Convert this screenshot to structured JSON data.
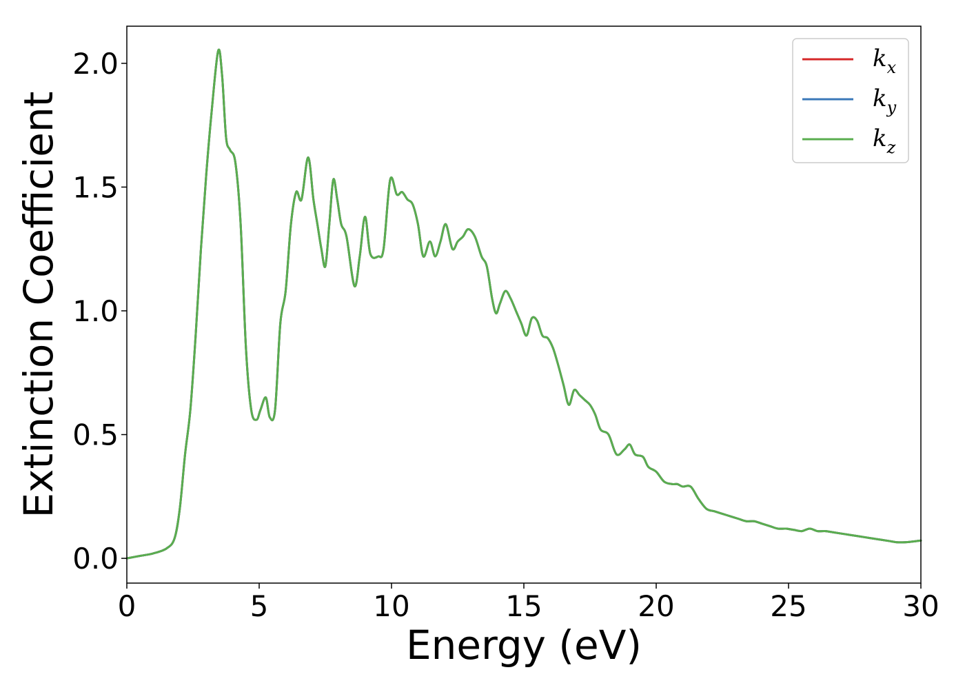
{
  "chart_data": {
    "type": "line",
    "title": "",
    "xlabel": "Energy (eV)",
    "ylabel": "Extinction Coefficient",
    "xlim": [
      0,
      30
    ],
    "ylim": [
      -0.1,
      2.15
    ],
    "x_ticks": [
      0,
      5,
      10,
      15,
      20,
      25,
      30
    ],
    "x_tick_labels": [
      "0",
      "5",
      "10",
      "15",
      "20",
      "25",
      "30"
    ],
    "y_ticks": [
      0.0,
      0.5,
      1.0,
      1.5,
      2.0
    ],
    "y_tick_labels": [
      "0.0",
      "0.5",
      "1.0",
      "1.5",
      "2.0"
    ],
    "grid": false,
    "legend_position": "top-right",
    "legend": [
      {
        "base": "k",
        "sub": "x",
        "color": "#d62728"
      },
      {
        "base": "k",
        "sub": "y",
        "color": "#3a78b8"
      },
      {
        "base": "k",
        "sub": "z",
        "color": "#5aad4f"
      }
    ],
    "x": [
      0,
      0.5,
      1.0,
      1.5,
      1.8,
      2.0,
      2.2,
      2.4,
      2.6,
      2.8,
      3.0,
      3.2,
      3.45,
      3.6,
      3.75,
      3.9,
      4.1,
      4.3,
      4.5,
      4.7,
      4.9,
      5.05,
      5.25,
      5.4,
      5.6,
      5.8,
      6.0,
      6.2,
      6.4,
      6.6,
      6.85,
      7.05,
      7.2,
      7.35,
      7.5,
      7.65,
      7.8,
      7.95,
      8.1,
      8.3,
      8.6,
      8.8,
      9.0,
      9.2,
      9.5,
      9.7,
      9.95,
      10.2,
      10.4,
      10.6,
      10.8,
      11.0,
      11.2,
      11.45,
      11.65,
      11.85,
      12.05,
      12.3,
      12.5,
      12.7,
      12.9,
      13.15,
      13.4,
      13.6,
      13.8,
      13.95,
      14.1,
      14.3,
      14.5,
      14.7,
      14.9,
      15.1,
      15.3,
      15.5,
      15.7,
      15.9,
      16.1,
      16.3,
      16.5,
      16.7,
      16.9,
      17.1,
      17.3,
      17.5,
      17.7,
      17.9,
      18.2,
      18.5,
      18.8,
      19.0,
      19.2,
      19.5,
      19.7,
      20.0,
      20.3,
      20.6,
      20.8,
      21.0,
      21.3,
      21.6,
      21.9,
      22.2,
      22.5,
      22.8,
      23.1,
      23.4,
      23.7,
      24.0,
      24.3,
      24.6,
      24.9,
      25.2,
      25.5,
      25.8,
      26.1,
      26.4,
      26.7,
      27.0,
      27.3,
      27.6,
      27.9,
      28.2,
      28.5,
      28.8,
      29.1,
      29.4,
      29.7,
      30.0
    ],
    "series": [
      {
        "name": "k_x",
        "values": [
          0.0,
          0.01,
          0.02,
          0.04,
          0.08,
          0.2,
          0.42,
          0.6,
          0.9,
          1.25,
          1.55,
          1.8,
          2.05,
          1.95,
          1.7,
          1.65,
          1.6,
          1.35,
          0.85,
          0.6,
          0.56,
          0.6,
          0.65,
          0.57,
          0.6,
          0.95,
          1.08,
          1.35,
          1.48,
          1.45,
          1.62,
          1.45,
          1.35,
          1.25,
          1.18,
          1.35,
          1.53,
          1.45,
          1.35,
          1.3,
          1.1,
          1.22,
          1.38,
          1.23,
          1.22,
          1.25,
          1.53,
          1.47,
          1.48,
          1.45,
          1.43,
          1.35,
          1.22,
          1.28,
          1.22,
          1.28,
          1.35,
          1.25,
          1.28,
          1.3,
          1.33,
          1.3,
          1.22,
          1.18,
          1.05,
          0.99,
          1.03,
          1.08,
          1.05,
          1.0,
          0.95,
          0.9,
          0.97,
          0.96,
          0.9,
          0.89,
          0.85,
          0.78,
          0.7,
          0.62,
          0.68,
          0.66,
          0.64,
          0.62,
          0.58,
          0.52,
          0.5,
          0.42,
          0.44,
          0.46,
          0.42,
          0.41,
          0.37,
          0.35,
          0.31,
          0.3,
          0.3,
          0.29,
          0.29,
          0.24,
          0.2,
          0.19,
          0.18,
          0.17,
          0.16,
          0.15,
          0.15,
          0.14,
          0.13,
          0.12,
          0.12,
          0.115,
          0.11,
          0.12,
          0.11,
          0.11,
          0.105,
          0.1,
          0.095,
          0.09,
          0.085,
          0.08,
          0.075,
          0.07,
          0.065,
          0.065,
          0.068,
          0.072
        ]
      },
      {
        "name": "k_y",
        "values": [
          0.0,
          0.01,
          0.02,
          0.04,
          0.08,
          0.2,
          0.42,
          0.6,
          0.9,
          1.25,
          1.55,
          1.8,
          2.05,
          1.95,
          1.7,
          1.65,
          1.6,
          1.35,
          0.85,
          0.6,
          0.56,
          0.6,
          0.65,
          0.57,
          0.6,
          0.95,
          1.08,
          1.35,
          1.48,
          1.45,
          1.62,
          1.45,
          1.35,
          1.25,
          1.18,
          1.35,
          1.53,
          1.45,
          1.35,
          1.3,
          1.1,
          1.22,
          1.38,
          1.23,
          1.22,
          1.25,
          1.53,
          1.47,
          1.48,
          1.45,
          1.43,
          1.35,
          1.22,
          1.28,
          1.22,
          1.28,
          1.35,
          1.25,
          1.28,
          1.3,
          1.33,
          1.3,
          1.22,
          1.18,
          1.05,
          0.99,
          1.03,
          1.08,
          1.05,
          1.0,
          0.95,
          0.9,
          0.97,
          0.96,
          0.9,
          0.89,
          0.85,
          0.78,
          0.7,
          0.62,
          0.68,
          0.66,
          0.64,
          0.62,
          0.58,
          0.52,
          0.5,
          0.42,
          0.44,
          0.46,
          0.42,
          0.41,
          0.37,
          0.35,
          0.31,
          0.3,
          0.3,
          0.29,
          0.29,
          0.24,
          0.2,
          0.19,
          0.18,
          0.17,
          0.16,
          0.15,
          0.15,
          0.14,
          0.13,
          0.12,
          0.12,
          0.115,
          0.11,
          0.12,
          0.11,
          0.11,
          0.105,
          0.1,
          0.095,
          0.09,
          0.085,
          0.08,
          0.075,
          0.07,
          0.065,
          0.065,
          0.068,
          0.072
        ]
      },
      {
        "name": "k_z",
        "values": [
          0.0,
          0.01,
          0.02,
          0.04,
          0.08,
          0.2,
          0.42,
          0.6,
          0.9,
          1.25,
          1.55,
          1.8,
          2.05,
          1.95,
          1.7,
          1.65,
          1.6,
          1.35,
          0.85,
          0.6,
          0.56,
          0.6,
          0.65,
          0.57,
          0.6,
          0.95,
          1.08,
          1.35,
          1.48,
          1.45,
          1.62,
          1.45,
          1.35,
          1.25,
          1.18,
          1.35,
          1.53,
          1.45,
          1.35,
          1.3,
          1.1,
          1.22,
          1.38,
          1.23,
          1.22,
          1.25,
          1.53,
          1.47,
          1.48,
          1.45,
          1.43,
          1.35,
          1.22,
          1.28,
          1.22,
          1.28,
          1.35,
          1.25,
          1.28,
          1.3,
          1.33,
          1.3,
          1.22,
          1.18,
          1.05,
          0.99,
          1.03,
          1.08,
          1.05,
          1.0,
          0.95,
          0.9,
          0.97,
          0.96,
          0.9,
          0.89,
          0.85,
          0.78,
          0.7,
          0.62,
          0.68,
          0.66,
          0.64,
          0.62,
          0.58,
          0.52,
          0.5,
          0.42,
          0.44,
          0.46,
          0.42,
          0.41,
          0.37,
          0.35,
          0.31,
          0.3,
          0.3,
          0.29,
          0.29,
          0.24,
          0.2,
          0.19,
          0.18,
          0.17,
          0.16,
          0.15,
          0.15,
          0.14,
          0.13,
          0.12,
          0.12,
          0.115,
          0.11,
          0.12,
          0.11,
          0.11,
          0.105,
          0.1,
          0.095,
          0.09,
          0.085,
          0.08,
          0.075,
          0.07,
          0.065,
          0.065,
          0.068,
          0.072
        ]
      }
    ]
  }
}
